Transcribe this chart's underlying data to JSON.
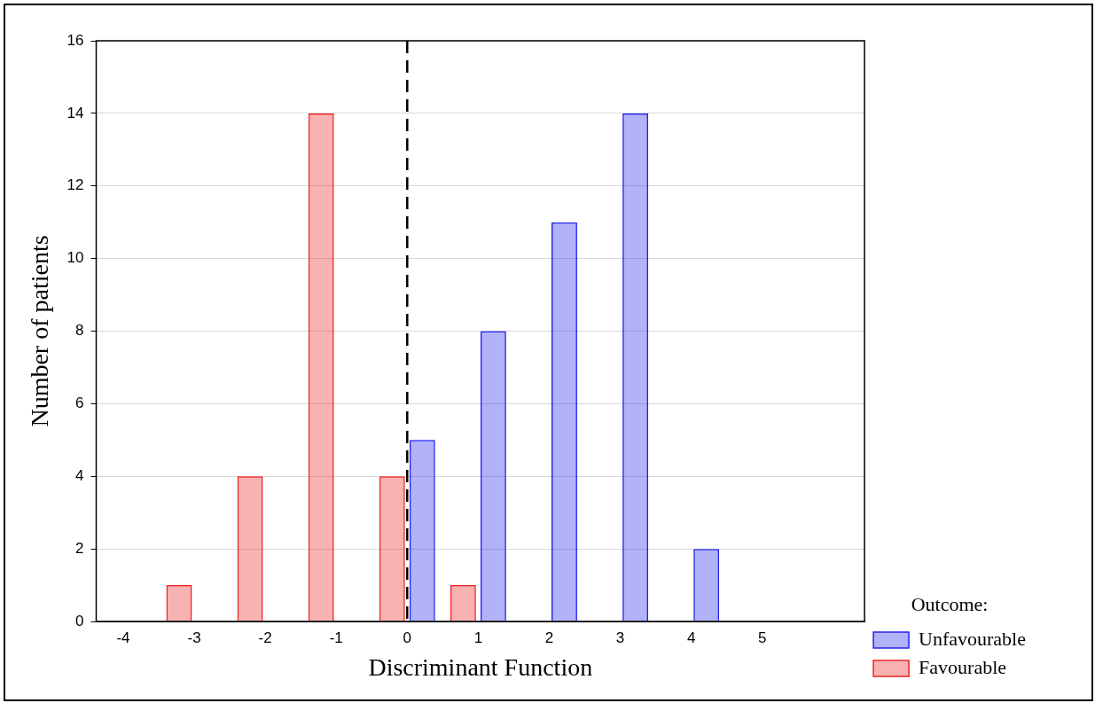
{
  "chart_data": {
    "type": "bar",
    "xlabel": "Discriminant Function",
    "ylabel": "Number of patients",
    "legend_title": "Outcome:",
    "x": [
      -3,
      -2,
      -1,
      0,
      1,
      2,
      3,
      4
    ],
    "series": [
      {
        "name": "Favourable",
        "color": "#ee2222",
        "values": [
          1,
          4,
          14,
          4,
          1,
          0,
          0,
          0
        ]
      },
      {
        "name": "Unfavourable",
        "color": "#2222ee",
        "values": [
          0,
          0,
          0,
          5,
          8,
          11,
          14,
          2
        ]
      }
    ],
    "xlim": [
      -4.38,
      6.44
    ],
    "xticks": [
      -4,
      -3,
      -2,
      -1,
      0,
      1,
      2,
      3,
      4,
      5
    ],
    "ylim": [
      0,
      16
    ],
    "yticks": [
      0,
      2,
      4,
      6,
      8,
      10,
      12,
      14,
      16
    ],
    "grid": "y",
    "legend": "bottom right",
    "ref_lines": [
      {
        "axis": "x",
        "value": 0,
        "line_style": "dashed",
        "color": "#000000"
      }
    ]
  }
}
